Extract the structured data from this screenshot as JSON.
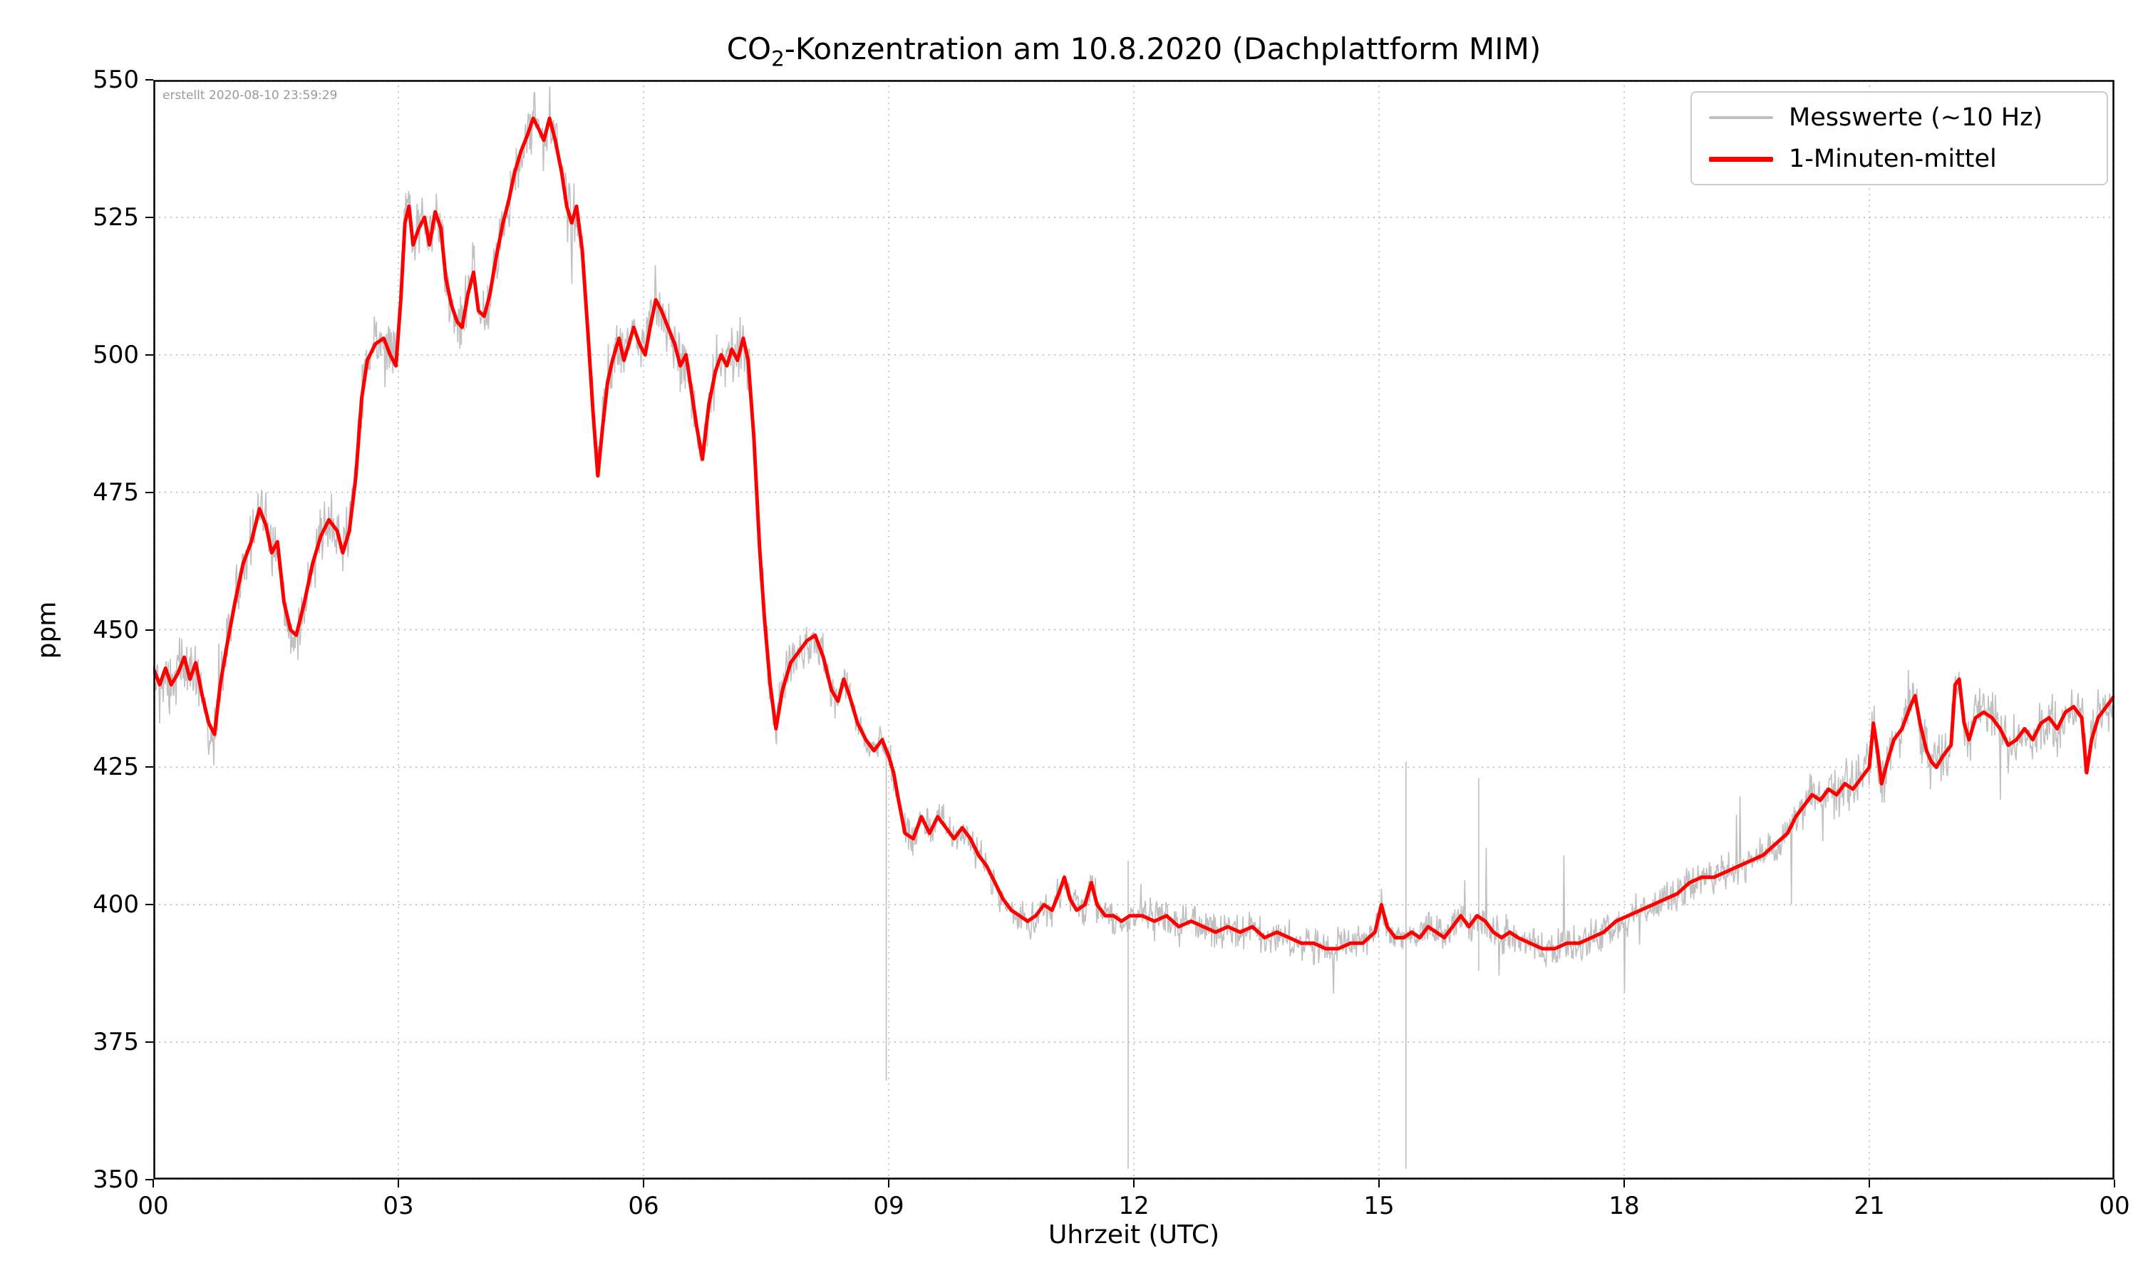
{
  "title": {
    "prefix": "CO",
    "subscript": "2",
    "suffix": "-Konzentration am 10.8.2020 (Dachplattform MIM)"
  },
  "annotation": "erstellt 2020-08-10 23:59:29",
  "chart_data": {
    "type": "line",
    "title": "CO2-Konzentration am 10.8.2020 (Dachplattform MIM)",
    "xlabel": "Uhrzeit (UTC)",
    "ylabel": "ppm",
    "xlim": [
      0,
      24
    ],
    "ylim": [
      350,
      550
    ],
    "grid": true,
    "legend_position": "upper right",
    "x_ticks": [
      {
        "value": 0,
        "label": "00"
      },
      {
        "value": 3,
        "label": "03"
      },
      {
        "value": 6,
        "label": "06"
      },
      {
        "value": 9,
        "label": "09"
      },
      {
        "value": 12,
        "label": "12"
      },
      {
        "value": 15,
        "label": "15"
      },
      {
        "value": 18,
        "label": "18"
      },
      {
        "value": 21,
        "label": "21"
      },
      {
        "value": 24,
        "label": "00"
      }
    ],
    "y_ticks": [
      350,
      375,
      400,
      425,
      450,
      475,
      500,
      525,
      550
    ],
    "series": [
      {
        "name": "Messwerte (~10 Hz)",
        "color": "#c0c0c0",
        "style": "raw-noise-around-mean",
        "derived_from": "1-Minuten-mittel",
        "noise_amplitude_profile": [
          [
            0,
            5
          ],
          [
            7.5,
            5
          ],
          [
            8.5,
            3
          ],
          [
            20,
            3
          ],
          [
            20.8,
            4.5
          ],
          [
            24,
            4.5
          ]
        ]
      },
      {
        "name": "1-Minuten-mittel",
        "color": "#ff0000",
        "x_unit": "hours UTC",
        "y_unit": "ppm",
        "points": [
          [
            0.0,
            443
          ],
          [
            0.08,
            440
          ],
          [
            0.15,
            443
          ],
          [
            0.22,
            440
          ],
          [
            0.3,
            442
          ],
          [
            0.38,
            445
          ],
          [
            0.45,
            441
          ],
          [
            0.52,
            444
          ],
          [
            0.6,
            438
          ],
          [
            0.68,
            433
          ],
          [
            0.75,
            431
          ],
          [
            0.82,
            440
          ],
          [
            0.9,
            447
          ],
          [
            1.0,
            455
          ],
          [
            1.1,
            462
          ],
          [
            1.2,
            466
          ],
          [
            1.3,
            472
          ],
          [
            1.38,
            469
          ],
          [
            1.45,
            464
          ],
          [
            1.52,
            466
          ],
          [
            1.6,
            455
          ],
          [
            1.68,
            450
          ],
          [
            1.75,
            449
          ],
          [
            1.85,
            455
          ],
          [
            1.95,
            462
          ],
          [
            2.05,
            467
          ],
          [
            2.15,
            470
          ],
          [
            2.25,
            468
          ],
          [
            2.32,
            464
          ],
          [
            2.4,
            468
          ],
          [
            2.48,
            478
          ],
          [
            2.55,
            492
          ],
          [
            2.62,
            499
          ],
          [
            2.72,
            502
          ],
          [
            2.82,
            503
          ],
          [
            2.9,
            500
          ],
          [
            2.97,
            498
          ],
          [
            3.03,
            510
          ],
          [
            3.08,
            524
          ],
          [
            3.13,
            527
          ],
          [
            3.18,
            520
          ],
          [
            3.25,
            523
          ],
          [
            3.32,
            525
          ],
          [
            3.38,
            520
          ],
          [
            3.45,
            526
          ],
          [
            3.52,
            523
          ],
          [
            3.58,
            514
          ],
          [
            3.65,
            509
          ],
          [
            3.72,
            506
          ],
          [
            3.78,
            505
          ],
          [
            3.85,
            511
          ],
          [
            3.92,
            515
          ],
          [
            3.98,
            508
          ],
          [
            4.05,
            507
          ],
          [
            4.12,
            511
          ],
          [
            4.2,
            518
          ],
          [
            4.28,
            524
          ],
          [
            4.35,
            528
          ],
          [
            4.42,
            533
          ],
          [
            4.5,
            537
          ],
          [
            4.58,
            540
          ],
          [
            4.65,
            543
          ],
          [
            4.72,
            541
          ],
          [
            4.78,
            539
          ],
          [
            4.85,
            543
          ],
          [
            4.92,
            539
          ],
          [
            5.0,
            533
          ],
          [
            5.06,
            527
          ],
          [
            5.12,
            524
          ],
          [
            5.18,
            527
          ],
          [
            5.25,
            519
          ],
          [
            5.32,
            504
          ],
          [
            5.38,
            490
          ],
          [
            5.44,
            478
          ],
          [
            5.5,
            487
          ],
          [
            5.56,
            495
          ],
          [
            5.62,
            499
          ],
          [
            5.7,
            503
          ],
          [
            5.76,
            499
          ],
          [
            5.82,
            502
          ],
          [
            5.88,
            505
          ],
          [
            5.95,
            502
          ],
          [
            6.02,
            500
          ],
          [
            6.08,
            505
          ],
          [
            6.15,
            510
          ],
          [
            6.22,
            508
          ],
          [
            6.3,
            505
          ],
          [
            6.38,
            502
          ],
          [
            6.45,
            498
          ],
          [
            6.52,
            500
          ],
          [
            6.58,
            494
          ],
          [
            6.65,
            487
          ],
          [
            6.72,
            481
          ],
          [
            6.8,
            491
          ],
          [
            6.88,
            497
          ],
          [
            6.95,
            500
          ],
          [
            7.02,
            498
          ],
          [
            7.08,
            501
          ],
          [
            7.15,
            499
          ],
          [
            7.22,
            503
          ],
          [
            7.28,
            499
          ],
          [
            7.35,
            485
          ],
          [
            7.42,
            465
          ],
          [
            7.48,
            452
          ],
          [
            7.55,
            440
          ],
          [
            7.62,
            432
          ],
          [
            7.7,
            439
          ],
          [
            7.8,
            444
          ],
          [
            7.9,
            446
          ],
          [
            8.0,
            448
          ],
          [
            8.1,
            449
          ],
          [
            8.2,
            445
          ],
          [
            8.3,
            439
          ],
          [
            8.38,
            437
          ],
          [
            8.45,
            441
          ],
          [
            8.52,
            438
          ],
          [
            8.62,
            433
          ],
          [
            8.72,
            430
          ],
          [
            8.82,
            428
          ],
          [
            8.92,
            430
          ],
          [
            9.0,
            427
          ],
          [
            9.06,
            424
          ],
          [
            9.12,
            419
          ],
          [
            9.2,
            413
          ],
          [
            9.3,
            412
          ],
          [
            9.4,
            416
          ],
          [
            9.5,
            413
          ],
          [
            9.6,
            416
          ],
          [
            9.7,
            414
          ],
          [
            9.8,
            412
          ],
          [
            9.9,
            414
          ],
          [
            10.0,
            412
          ],
          [
            10.1,
            409
          ],
          [
            10.2,
            407
          ],
          [
            10.3,
            404
          ],
          [
            10.4,
            401
          ],
          [
            10.5,
            399
          ],
          [
            10.6,
            398
          ],
          [
            10.7,
            397
          ],
          [
            10.8,
            398
          ],
          [
            10.9,
            400
          ],
          [
            11.0,
            399
          ],
          [
            11.08,
            402
          ],
          [
            11.15,
            405
          ],
          [
            11.22,
            401
          ],
          [
            11.3,
            399
          ],
          [
            11.4,
            400
          ],
          [
            11.48,
            404
          ],
          [
            11.55,
            400
          ],
          [
            11.65,
            398
          ],
          [
            11.75,
            398
          ],
          [
            11.85,
            397
          ],
          [
            11.95,
            398
          ],
          [
            12.1,
            398
          ],
          [
            12.25,
            397
          ],
          [
            12.4,
            398
          ],
          [
            12.55,
            396
          ],
          [
            12.7,
            397
          ],
          [
            12.85,
            396
          ],
          [
            13.0,
            395
          ],
          [
            13.15,
            396
          ],
          [
            13.3,
            395
          ],
          [
            13.45,
            396
          ],
          [
            13.6,
            394
          ],
          [
            13.75,
            395
          ],
          [
            13.9,
            394
          ],
          [
            14.05,
            393
          ],
          [
            14.2,
            393
          ],
          [
            14.35,
            392
          ],
          [
            14.5,
            392
          ],
          [
            14.65,
            393
          ],
          [
            14.8,
            393
          ],
          [
            14.95,
            395
          ],
          [
            15.03,
            400
          ],
          [
            15.1,
            396
          ],
          [
            15.2,
            394
          ],
          [
            15.3,
            394
          ],
          [
            15.4,
            395
          ],
          [
            15.5,
            394
          ],
          [
            15.6,
            396
          ],
          [
            15.7,
            395
          ],
          [
            15.8,
            394
          ],
          [
            15.9,
            396
          ],
          [
            16.0,
            398
          ],
          [
            16.1,
            396
          ],
          [
            16.2,
            398
          ],
          [
            16.3,
            397
          ],
          [
            16.4,
            395
          ],
          [
            16.5,
            394
          ],
          [
            16.6,
            395
          ],
          [
            16.7,
            394
          ],
          [
            16.85,
            393
          ],
          [
            17.0,
            392
          ],
          [
            17.15,
            392
          ],
          [
            17.3,
            393
          ],
          [
            17.45,
            393
          ],
          [
            17.6,
            394
          ],
          [
            17.75,
            395
          ],
          [
            17.9,
            397
          ],
          [
            18.05,
            398
          ],
          [
            18.2,
            399
          ],
          [
            18.35,
            400
          ],
          [
            18.5,
            401
          ],
          [
            18.65,
            402
          ],
          [
            18.8,
            404
          ],
          [
            18.95,
            405
          ],
          [
            19.1,
            405
          ],
          [
            19.25,
            406
          ],
          [
            19.4,
            407
          ],
          [
            19.55,
            408
          ],
          [
            19.7,
            409
          ],
          [
            19.85,
            411
          ],
          [
            20.0,
            413
          ],
          [
            20.1,
            416
          ],
          [
            20.2,
            418
          ],
          [
            20.3,
            420
          ],
          [
            20.4,
            419
          ],
          [
            20.5,
            421
          ],
          [
            20.6,
            420
          ],
          [
            20.7,
            422
          ],
          [
            20.8,
            421
          ],
          [
            20.9,
            423
          ],
          [
            21.0,
            425
          ],
          [
            21.05,
            433
          ],
          [
            21.1,
            428
          ],
          [
            21.15,
            422
          ],
          [
            21.22,
            426
          ],
          [
            21.3,
            430
          ],
          [
            21.4,
            432
          ],
          [
            21.5,
            436
          ],
          [
            21.56,
            438
          ],
          [
            21.62,
            433
          ],
          [
            21.7,
            428
          ],
          [
            21.76,
            426
          ],
          [
            21.82,
            425
          ],
          [
            21.9,
            427
          ],
          [
            22.0,
            429
          ],
          [
            22.05,
            440
          ],
          [
            22.1,
            441
          ],
          [
            22.16,
            433
          ],
          [
            22.22,
            430
          ],
          [
            22.3,
            434
          ],
          [
            22.4,
            435
          ],
          [
            22.5,
            434
          ],
          [
            22.6,
            432
          ],
          [
            22.7,
            429
          ],
          [
            22.8,
            430
          ],
          [
            22.9,
            432
          ],
          [
            23.0,
            430
          ],
          [
            23.1,
            433
          ],
          [
            23.2,
            434
          ],
          [
            23.3,
            432
          ],
          [
            23.4,
            435
          ],
          [
            23.5,
            436
          ],
          [
            23.6,
            434
          ],
          [
            23.66,
            424
          ],
          [
            23.72,
            430
          ],
          [
            23.8,
            434
          ],
          [
            23.9,
            436
          ],
          [
            24.0,
            438
          ]
        ]
      }
    ],
    "raw_spikes": [
      {
        "x": 8.97,
        "y_min": 368,
        "y_max": 428
      },
      {
        "x": 11.93,
        "y_min": 352,
        "y_max": 408
      },
      {
        "x": 15.33,
        "y_min": 352,
        "y_max": 426
      },
      {
        "x": 16.22,
        "y_min": 388,
        "y_max": 423
      }
    ]
  }
}
